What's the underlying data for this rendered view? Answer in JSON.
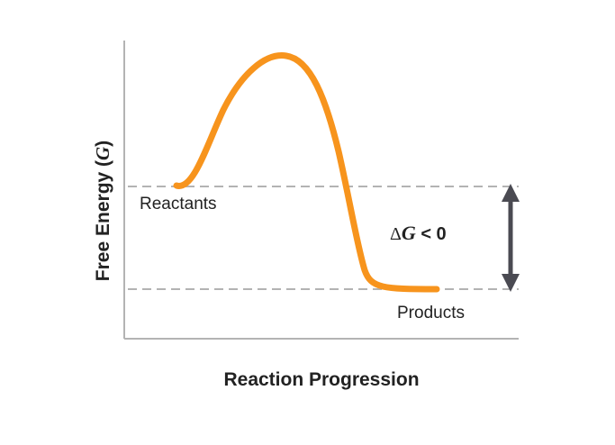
{
  "axes": {
    "y_label_prefix": "Free Energy (",
    "y_label_var": "G",
    "y_label_suffix": ")",
    "x_label": "Reaction Progression"
  },
  "states": {
    "reactants": "Reactants",
    "products": "Products"
  },
  "delta": {
    "symbol": "Δ",
    "var": "G",
    "relation": " < 0"
  },
  "colors": {
    "curve": "#f7941d",
    "axis": "#b3b3b3",
    "dashed": "#b3b3b3",
    "arrow": "#4a4a52",
    "text": "#222222"
  }
}
